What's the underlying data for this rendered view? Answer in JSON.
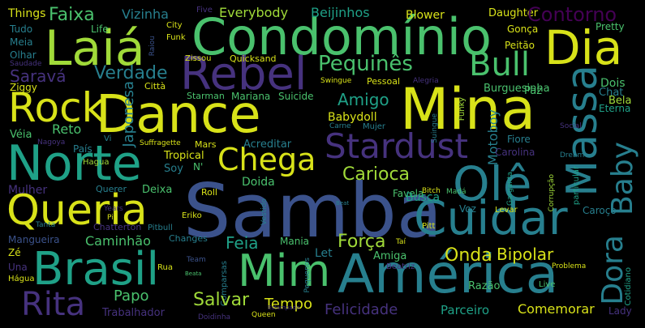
{
  "palette": {
    "background": "#000000",
    "yellow": "#d8e219",
    "lime": "#a0da39",
    "green": "#4ac16d",
    "teal_green": "#1fa187",
    "teal": "#277f8e",
    "blue": "#365c8d",
    "indigo": "#46327e",
    "purple": "#440154"
  },
  "words": {
    "samba": "Samba",
    "dance": "Dance",
    "mina": "Mina",
    "condominio": "Condomínio",
    "laia": "Laiá",
    "dia": "Dia",
    "rebel": "Rebel",
    "rock": "Rock",
    "norte": "Norte",
    "queria": "Queria",
    "brasil": "Brasil",
    "mim": "Mim",
    "america": "América",
    "cuidar": "Cuidar",
    "massa": "Massa",
    "ole": "Olê",
    "stardust": "Stardust",
    "chega": "Chega",
    "bull": "Bull",
    "pequines": "Pequinês",
    "dora": "Dora",
    "baby": "Baby",
    "rita": "Rita",
    "things": "Things",
    "faixa": "Faixa",
    "vizinha": "Vizinha",
    "five": "Five",
    "everybody": "Everybody",
    "beijinhos": "Beijinhos",
    "blower": "Blower",
    "daughter": "Daughter",
    "contorno": "Contorno",
    "tudo": "Tudo",
    "life": "Life",
    "city": "City",
    "gonca": "Gonça",
    "pretty": "Pretty",
    "meia": "Meia",
    "raiou": "Raiou",
    "funk": "Funk",
    "peitao": "Peitão",
    "olhar": "Olhar",
    "saudade": "Saudade",
    "zissou": "Zissou",
    "quicksand": "Quicksand",
    "sarava": "Saravá",
    "verdade": "Verdade",
    "ziggy": "Ziggy",
    "swingue": "Swingue",
    "pessoal": "Pessoal",
    "alegria": "Alegria",
    "paz": "Paz",
    "citta": "Città",
    "starman": "Starman",
    "mariana": "Mariana",
    "suicide": "Suicide",
    "japonesa": "Japonesa",
    "amigo": "Amigo",
    "burguesinha": "Burguesinha",
    "dois": "Dois",
    "chat": "Chat",
    "bela": "Bela",
    "eterna": "Eterna",
    "babydoll": "Babydoll",
    "reto": "Reto",
    "veia": "Véia",
    "carne": "Carne",
    "mujer": "Mujer",
    "suingue": "Suingue",
    "funky": "Funky",
    "motoboy": "Motoboy",
    "social": "Social",
    "nagoya": "Nagoya",
    "vi": "Vi",
    "pais": "País",
    "suffragette": "Suffragette",
    "mars": "Mars",
    "acreditar": "Acreditar",
    "fiore": "Fiore",
    "dream": "Dream",
    "carolina": "Carolina",
    "tropical": "Tropical",
    "hagua": "Hagua",
    "soy": "Soy",
    "n": "N'",
    "particular": "particular",
    "carioca": "Carioca",
    "favela": "Favela",
    "mada": "Madá",
    "corrupcao": "Corrupção",
    "garganta": "Garganta",
    "mulher": "Mulher",
    "querer": "Querer",
    "deixa": "Deixa",
    "doida": "Doida",
    "roll": "Roll",
    "busca": "Busca",
    "bitch": "Bitch",
    "beat": "Beat",
    "years": "Years",
    "pit": "Pit",
    "eriko": "Eriko",
    "vestido": "Vestido",
    "voz": "Voz",
    "levar": "Levar",
    "caroco": "Caroço",
    "tanta": "Tanta",
    "chatterton": "Chatterton",
    "pitbull": "Pitbull",
    "pitt": "Pitt",
    "mangueira": "Mangueira",
    "caminhao": "Caminhão",
    "changes": "Changes",
    "feia": "Feia",
    "mania": "Mania",
    "tai": "Taí",
    "ze": "Zé",
    "forca": "Força",
    "bipolar": "Bipolar",
    "let": "Let",
    "amiga": "Amiga",
    "onda": "Onda",
    "una": "Una",
    "hagua2": "Hágua",
    "team": "Team",
    "rua": "Rua",
    "beatriz": "Beatriz",
    "problema": "Problema",
    "cotidiano": "Cotidiano",
    "beata": "Beata",
    "comparsas": "Comparsas",
    "pequenos": "Pequenos",
    "papo": "Papo",
    "razao": "Razão",
    "live": "Live",
    "salvar": "Salvar",
    "tempo": "Tempo",
    "trabalhador": "Trabalhador",
    "estampado": "Estampado",
    "queen": "Queen",
    "felicidade": "Felicidade",
    "doidinha": "Doidinha",
    "parceiro": "Parceiro",
    "comemorar": "Comemorar",
    "lady": "Lady"
  }
}
